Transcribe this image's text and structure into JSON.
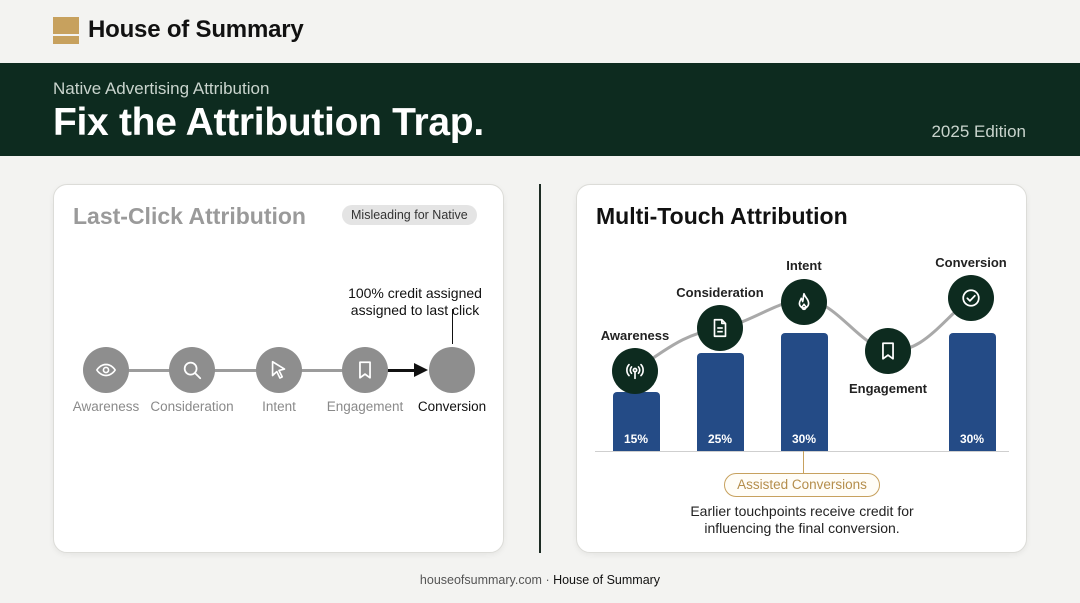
{
  "brand": {
    "name": "House of Summary",
    "logo_icon": "house-logo-mark",
    "logo_color": "#c7a15e"
  },
  "banner": {
    "subtitle": "Native Advertising Attribution",
    "title": "Fix the Attribution Trap.",
    "edition": "2025 Edition",
    "background": "#0d2b1f"
  },
  "last_click": {
    "title": "Last-Click Attribution",
    "badge": "Misleading for Native",
    "credit_note_line1": "100% credit assigned",
    "credit_note_line2": "assigned to last click",
    "stages": [
      {
        "label": "Awareness",
        "icon": "eye-icon"
      },
      {
        "label": "Consideration",
        "icon": "search-icon"
      },
      {
        "label": "Intent",
        "icon": "cursor-icon"
      },
      {
        "label": "Engagement",
        "icon": "bookmark-icon"
      },
      {
        "label": "Conversion",
        "icon": ""
      }
    ]
  },
  "multi_touch": {
    "title": "Multi-Touch Attribution",
    "stages": [
      {
        "label": "Awareness",
        "icon": "broadcast-icon",
        "credit": "15%"
      },
      {
        "label": "Consideration",
        "icon": "document-icon",
        "credit": "25%"
      },
      {
        "label": "Intent",
        "icon": "flame-icon",
        "credit": "30%"
      },
      {
        "label": "Engagement",
        "icon": "bookmark-icon",
        "credit": ""
      },
      {
        "label": "Conversion",
        "icon": "check-circle-icon",
        "credit": "30%"
      }
    ],
    "bar_color": "#244b86",
    "assisted_badge": "Assisted Conversions",
    "assisted_desc_line1": "Earlier touchpoints receive credit for",
    "assisted_desc_line2": "influencing the final conversion."
  },
  "chart_data": {
    "type": "bar",
    "categories": [
      "Awareness",
      "Consideration",
      "Intent",
      "Engagement",
      "Conversion"
    ],
    "values": [
      15,
      25,
      30,
      null,
      30
    ],
    "ylim": [
      0,
      35
    ]
  },
  "footer": {
    "site": "houseofsummary.com",
    "separator": " · ",
    "brand": "House of Summary"
  }
}
